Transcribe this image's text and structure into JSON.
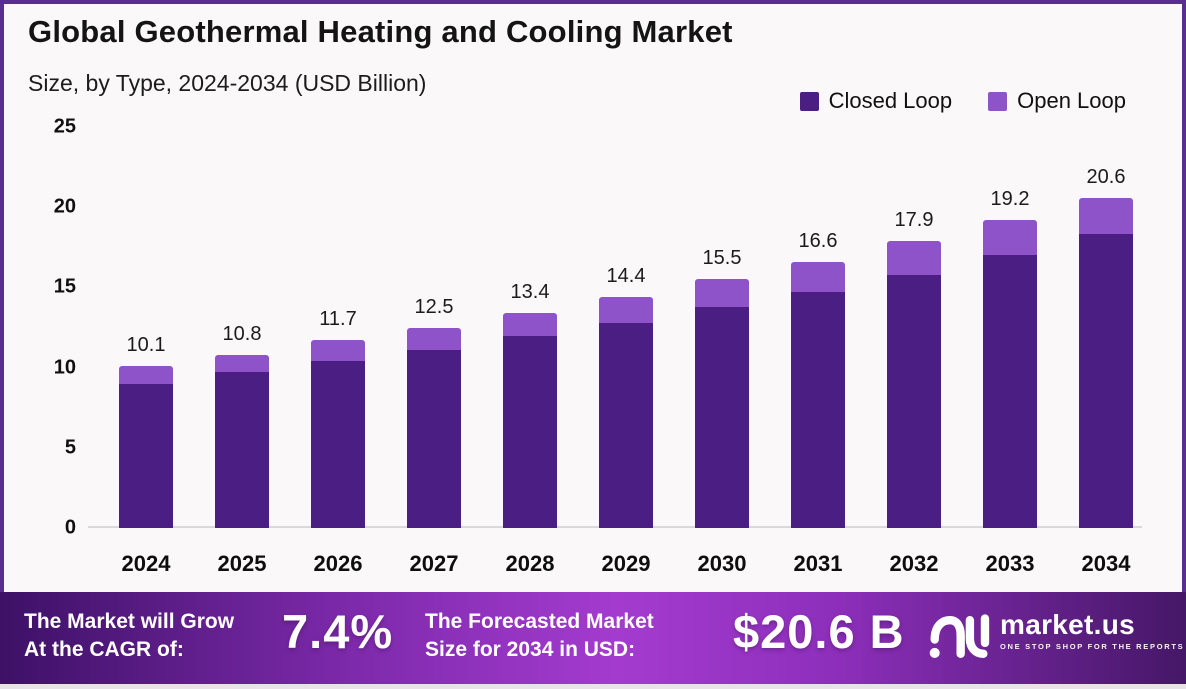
{
  "title": "Global Geothermal Heating and Cooling Market",
  "subtitle": "Size, by Type, 2024-2034 (USD Billion)",
  "colors": {
    "closed_loop": "#4A1E83",
    "open_loop": "#8E53C8",
    "border": "#5A2E91",
    "background": "#FAF8F9",
    "axis_line": "#D9D9D9",
    "banner_gradient": [
      "#3D1166",
      "#7E2AAC",
      "#A43BCF",
      "#8E2FBC",
      "#451767"
    ]
  },
  "chart_data": {
    "type": "bar",
    "stacked": true,
    "title": "Global Geothermal Heating and Cooling Market",
    "subtitle": "Size, by Type, 2024-2034 (USD Billion)",
    "xlabel": "",
    "ylabel": "USD Billion",
    "ylim": [
      0,
      25
    ],
    "yticks": [
      0,
      5,
      10,
      15,
      20,
      25
    ],
    "grid": false,
    "legend_position": "top-right",
    "categories": [
      "2024",
      "2025",
      "2026",
      "2027",
      "2028",
      "2029",
      "2030",
      "2031",
      "2032",
      "2033",
      "2034"
    ],
    "series": [
      {
        "name": "Closed Loop",
        "color": "#4A1E83",
        "values": [
          9.0,
          9.7,
          10.4,
          11.1,
          12.0,
          12.8,
          13.8,
          14.7,
          15.8,
          17.0,
          18.3
        ]
      },
      {
        "name": "Open Loop",
        "color": "#8E53C8",
        "values": [
          1.1,
          1.1,
          1.3,
          1.4,
          1.4,
          1.6,
          1.7,
          1.9,
          2.1,
          2.2,
          2.3
        ]
      }
    ],
    "totals": [
      10.1,
      10.8,
      11.7,
      12.5,
      13.4,
      14.4,
      15.5,
      16.6,
      17.9,
      19.2,
      20.6
    ]
  },
  "banner": {
    "grow_line1": "The Market will Grow",
    "grow_line2": "At the CAGR of:",
    "cagr_value": "7.4%",
    "forecast_line1": "The Forecasted Market",
    "forecast_line2": "Size for 2034 in USD:",
    "forecast_value": "$20.6 B",
    "brand": "market.us",
    "brand_tagline": "ONE STOP SHOP FOR THE REPORTS"
  }
}
